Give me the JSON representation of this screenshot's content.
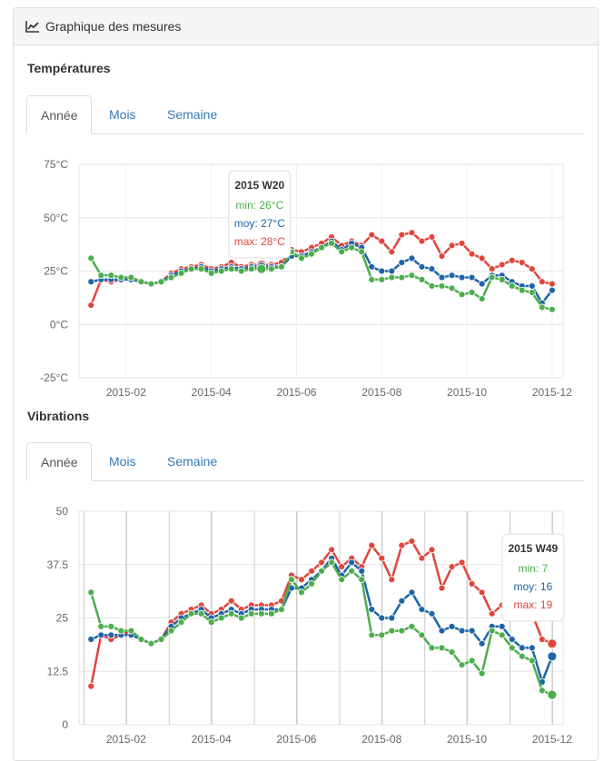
{
  "panel": {
    "title": "Graphique des mesures",
    "icon": "line-chart-icon"
  },
  "colors": {
    "min": "#4cae4c",
    "moy": "#1f64a8",
    "max": "#e0463c"
  },
  "chart_data": [
    {
      "type": "line",
      "title": "Températures",
      "tabs": [
        {
          "label": "Année",
          "active": true
        },
        {
          "label": "Mois",
          "active": false
        },
        {
          "label": "Semaine",
          "active": false
        }
      ],
      "ylim": [
        -25,
        75
      ],
      "yticks": [
        {
          "v": 75,
          "label": "75°C"
        },
        {
          "v": 50,
          "label": "50°C"
        },
        {
          "v": 25,
          "label": "25°C"
        },
        {
          "v": 0,
          "label": "0°C"
        },
        {
          "v": -25,
          "label": "-25°C"
        }
      ],
      "xticks": [
        {
          "w": 6.5,
          "label": "2015-02"
        },
        {
          "w": 15,
          "label": "2015-04"
        },
        {
          "w": 23.5,
          "label": "2015-06"
        },
        {
          "w": 32,
          "label": "2015-08"
        },
        {
          "w": 40.5,
          "label": "2015-10"
        },
        {
          "w": 49,
          "label": "2015-12"
        }
      ],
      "vgrid": false,
      "x": [
        3,
        4,
        5,
        6,
        7,
        8,
        9,
        10,
        11,
        12,
        13,
        14,
        15,
        16,
        17,
        18,
        19,
        20,
        21,
        22,
        23,
        24,
        25,
        26,
        27,
        28,
        29,
        30,
        31,
        32,
        33,
        34,
        35,
        36,
        37,
        38,
        39,
        40,
        41,
        42,
        43,
        44,
        45,
        46,
        47,
        48,
        49
      ],
      "series": [
        {
          "name": "min",
          "key": "min",
          "values": [
            31,
            23,
            23,
            22,
            22,
            20,
            19,
            20,
            22,
            24,
            26,
            26,
            24,
            25,
            26,
            25,
            26,
            26,
            26,
            27,
            34,
            31,
            33,
            36,
            38,
            34,
            36,
            34,
            21,
            21,
            22,
            22,
            23,
            21,
            18,
            18,
            17,
            14,
            15,
            12,
            22,
            21,
            18,
            16,
            15,
            8,
            7
          ]
        },
        {
          "name": "moy",
          "key": "moy",
          "values": [
            20,
            21,
            21,
            21,
            21,
            20,
            19,
            20,
            23,
            25,
            26,
            27,
            25,
            26,
            27,
            26,
            27,
            27,
            27,
            27,
            32,
            32,
            34,
            36,
            39,
            35,
            38,
            36,
            27,
            25,
            25,
            29,
            31,
            27,
            26,
            22,
            23,
            22,
            22,
            19,
            23,
            23,
            20,
            18,
            18,
            10,
            16
          ]
        },
        {
          "name": "max",
          "key": "max",
          "values": [
            9,
            21,
            20,
            21,
            22,
            20,
            19,
            20,
            24,
            26,
            27,
            28,
            26,
            27,
            29,
            27,
            28,
            28,
            28,
            29,
            35,
            34,
            36,
            38,
            41,
            37,
            39,
            37,
            42,
            39,
            34,
            42,
            43,
            39,
            41,
            32,
            37,
            38,
            33,
            31,
            26,
            28,
            30,
            29,
            26,
            20,
            19
          ]
        }
      ],
      "tooltip": {
        "title": "2015 W20",
        "min": "min: 26°C",
        "moy": "moy: 27°C",
        "max": "max: 28°C",
        "index": 17
      }
    },
    {
      "type": "line",
      "title": "Vibrations",
      "tabs": [
        {
          "label": "Année",
          "active": true
        },
        {
          "label": "Mois",
          "active": false
        },
        {
          "label": "Semaine",
          "active": false
        }
      ],
      "ylim": [
        0,
        50
      ],
      "yticks": [
        {
          "v": 50,
          "label": "50"
        },
        {
          "v": 37.5,
          "label": "37.5"
        },
        {
          "v": 25,
          "label": "25"
        },
        {
          "v": 12.5,
          "label": "12.5"
        },
        {
          "v": 0,
          "label": "0"
        }
      ],
      "xticks": [
        {
          "w": 6.5,
          "label": "2015-02"
        },
        {
          "w": 15,
          "label": "2015-04"
        },
        {
          "w": 23.5,
          "label": "2015-06"
        },
        {
          "w": 32,
          "label": "2015-08"
        },
        {
          "w": 40.5,
          "label": "2015-10"
        },
        {
          "w": 49,
          "label": "2015-12"
        }
      ],
      "vgrid": true,
      "x": [
        3,
        4,
        5,
        6,
        7,
        8,
        9,
        10,
        11,
        12,
        13,
        14,
        15,
        16,
        17,
        18,
        19,
        20,
        21,
        22,
        23,
        24,
        25,
        26,
        27,
        28,
        29,
        30,
        31,
        32,
        33,
        34,
        35,
        36,
        37,
        38,
        39,
        40,
        41,
        42,
        43,
        44,
        45,
        46,
        47,
        48,
        49
      ],
      "series": [
        {
          "name": "min",
          "key": "min",
          "values": [
            31,
            23,
            23,
            22,
            22,
            20,
            19,
            20,
            22,
            24,
            26,
            26,
            24,
            25,
            26,
            25,
            26,
            26,
            26,
            27,
            34,
            31,
            33,
            36,
            38,
            34,
            36,
            34,
            21,
            21,
            22,
            22,
            23,
            21,
            18,
            18,
            17,
            14,
            15,
            12,
            22,
            21,
            18,
            16,
            15,
            8,
            7
          ]
        },
        {
          "name": "moy",
          "key": "moy",
          "values": [
            20,
            21,
            21,
            21,
            21,
            20,
            19,
            20,
            23,
            25,
            26,
            27,
            25,
            26,
            27,
            26,
            27,
            27,
            27,
            27,
            32,
            32,
            34,
            36,
            39,
            35,
            38,
            36,
            27,
            25,
            25,
            29,
            31,
            27,
            26,
            22,
            23,
            22,
            22,
            19,
            23,
            23,
            20,
            18,
            18,
            10,
            16
          ]
        },
        {
          "name": "max",
          "key": "max",
          "values": [
            9,
            21,
            20,
            21,
            22,
            20,
            19,
            20,
            24,
            26,
            27,
            28,
            26,
            27,
            29,
            27,
            28,
            28,
            28,
            29,
            35,
            34,
            36,
            38,
            41,
            37,
            39,
            37,
            42,
            39,
            34,
            42,
            43,
            39,
            41,
            32,
            37,
            38,
            33,
            31,
            26,
            28,
            30,
            29,
            26,
            20,
            19
          ]
        }
      ],
      "tooltip": {
        "title": "2015 W49",
        "min": "min: 7",
        "moy": "moy: 16",
        "max": "max: 19",
        "index": 46
      }
    }
  ]
}
